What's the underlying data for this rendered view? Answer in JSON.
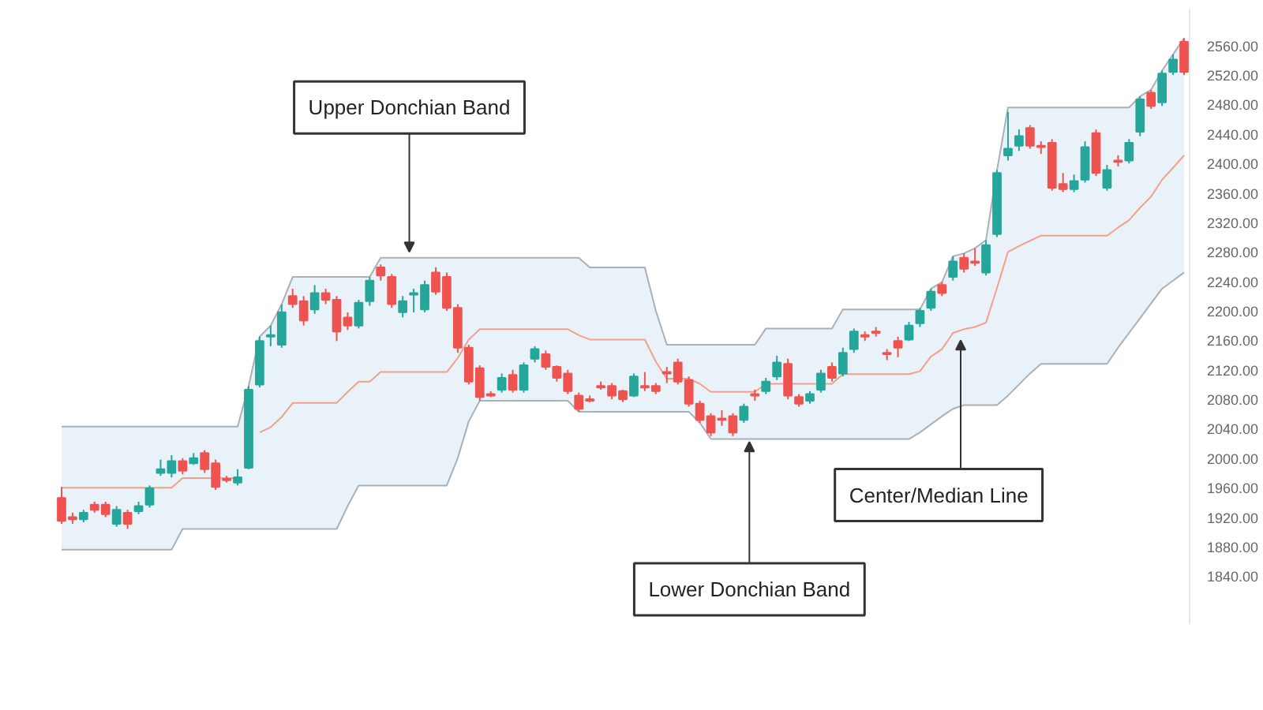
{
  "chart_data": {
    "type": "candlestick",
    "categories": [
      null,
      null,
      null,
      null,
      null,
      null,
      null,
      null,
      null,
      null,
      null,
      null,
      null,
      null,
      null,
      null,
      null,
      null,
      null,
      null,
      null,
      null,
      null,
      null,
      null,
      null,
      null,
      null,
      null,
      null,
      null,
      null,
      null,
      null,
      null,
      null,
      null,
      null,
      null,
      null,
      null,
      null,
      null,
      null,
      null,
      null,
      null,
      null,
      null,
      null,
      null,
      null,
      null,
      null,
      null,
      null,
      null,
      null,
      null,
      null,
      null,
      null,
      null,
      null,
      null,
      null,
      null,
      null,
      null,
      null,
      null,
      null,
      null,
      null,
      null,
      null,
      null,
      null,
      null,
      null,
      null,
      null,
      null,
      null,
      null,
      null,
      null,
      null,
      null,
      null,
      null,
      null,
      null,
      null,
      null,
      null,
      null,
      null,
      null,
      null,
      null,
      null,
      null
    ],
    "ohlc": [
      [
        1946,
        1961,
        1911,
        1915
      ],
      [
        1920,
        1926,
        1911,
        1917
      ],
      [
        1917,
        1930,
        1913,
        1926
      ],
      [
        1937,
        1941,
        1926,
        1930
      ],
      [
        1937,
        1941,
        1920,
        1924
      ],
      [
        1911,
        1935,
        1907,
        1930
      ],
      [
        1926,
        1930,
        1904,
        1911
      ],
      [
        1928,
        1941,
        1924,
        1935
      ],
      [
        1937,
        1963,
        1933,
        1959
      ],
      [
        1980,
        1998,
        1976,
        1985
      ],
      [
        1980,
        2004,
        1974,
        1996
      ],
      [
        1996,
        2000,
        1978,
        1983
      ],
      [
        1993,
        2007,
        1991,
        2000
      ],
      [
        2007,
        2011,
        1980,
        1985
      ],
      [
        1993,
        1998,
        1957,
        1961
      ],
      [
        1972,
        1976,
        1967,
        1970
      ],
      [
        1967,
        1985,
        1963,
        1974
      ],
      [
        1987,
        2098,
        1985,
        2093
      ],
      [
        2100,
        2165,
        2096,
        2159
      ],
      [
        2165,
        2180,
        2152,
        2167
      ],
      [
        2154,
        2209,
        2150,
        2198
      ],
      [
        2220,
        2230,
        2204,
        2209
      ],
      [
        2213,
        2220,
        2180,
        2187
      ],
      [
        2202,
        2235,
        2196,
        2224
      ],
      [
        2224,
        2230,
        2209,
        2215
      ],
      [
        2215,
        2220,
        2159,
        2172
      ],
      [
        2191,
        2198,
        2174,
        2180
      ],
      [
        2180,
        2215,
        2176,
        2211
      ],
      [
        2213,
        2246,
        2207,
        2241
      ],
      [
        2259,
        2263,
        2241,
        2248
      ],
      [
        2246,
        2250,
        2204,
        2209
      ],
      [
        2198,
        2220,
        2191,
        2213
      ],
      [
        2222,
        2230,
        2198,
        2224
      ],
      [
        2202,
        2241,
        2198,
        2235
      ],
      [
        2252,
        2259,
        2222,
        2226
      ],
      [
        2246,
        2252,
        2200,
        2204
      ],
      [
        2204,
        2209,
        2143,
        2150
      ],
      [
        2150,
        2154,
        2100,
        2104
      ],
      [
        2122,
        2126,
        2078,
        2083
      ],
      [
        2087,
        2091,
        2083,
        2085
      ],
      [
        2093,
        2115,
        2089,
        2109
      ],
      [
        2113,
        2120,
        2089,
        2093
      ],
      [
        2093,
        2130,
        2089,
        2126
      ],
      [
        2135,
        2152,
        2130,
        2148
      ],
      [
        2141,
        2146,
        2120,
        2124
      ],
      [
        2124,
        2126,
        2104,
        2109
      ],
      [
        2115,
        2120,
        2087,
        2091
      ],
      [
        2085,
        2089,
        2063,
        2067
      ],
      [
        2080,
        2085,
        2076,
        2078
      ],
      [
        2098,
        2104,
        2093,
        2096
      ],
      [
        2098,
        2102,
        2080,
        2085
      ],
      [
        2091,
        2093,
        2076,
        2080
      ],
      [
        2085,
        2115,
        2083,
        2111
      ],
      [
        2098,
        2117,
        2091,
        2096
      ],
      [
        2098,
        2102,
        2087,
        2091
      ],
      [
        2117,
        2124,
        2102,
        2115
      ],
      [
        2130,
        2135,
        2100,
        2104
      ],
      [
        2106,
        2111,
        2070,
        2074
      ],
      [
        2074,
        2078,
        2048,
        2052
      ],
      [
        2057,
        2061,
        2030,
        2035
      ],
      [
        2054,
        2065,
        2044,
        2052
      ],
      [
        2057,
        2061,
        2030,
        2035
      ],
      [
        2052,
        2074,
        2048,
        2070
      ],
      [
        2087,
        2093,
        2078,
        2085
      ],
      [
        2091,
        2109,
        2087,
        2104
      ],
      [
        2111,
        2139,
        2106,
        2130
      ],
      [
        2128,
        2135,
        2080,
        2085
      ],
      [
        2083,
        2087,
        2070,
        2074
      ],
      [
        2078,
        2091,
        2074,
        2087
      ],
      [
        2093,
        2120,
        2089,
        2115
      ],
      [
        2124,
        2130,
        2104,
        2109
      ],
      [
        2115,
        2150,
        2111,
        2143
      ],
      [
        2148,
        2176,
        2143,
        2172
      ],
      [
        2167,
        2172,
        2159,
        2165
      ],
      [
        2172,
        2178,
        2165,
        2170
      ],
      [
        2143,
        2148,
        2133,
        2141
      ],
      [
        2159,
        2165,
        2137,
        2150
      ],
      [
        2161,
        2185,
        2159,
        2180
      ],
      [
        2183,
        2204,
        2178,
        2200
      ],
      [
        2204,
        2230,
        2200,
        2226
      ],
      [
        2235,
        2239,
        2220,
        2224
      ],
      [
        2246,
        2274,
        2241,
        2267
      ],
      [
        2272,
        2278,
        2252,
        2257
      ],
      [
        2267,
        2285,
        2261,
        2265
      ],
      [
        2252,
        2296,
        2248,
        2289
      ],
      [
        2304,
        2391,
        2300,
        2387
      ],
      [
        2411,
        2470,
        2404,
        2420
      ],
      [
        2424,
        2446,
        2417,
        2437
      ],
      [
        2448,
        2452,
        2420,
        2424
      ],
      [
        2424,
        2430,
        2413,
        2422
      ],
      [
        2428,
        2433,
        2363,
        2367
      ],
      [
        2372,
        2387,
        2361,
        2365
      ],
      [
        2365,
        2385,
        2361,
        2376
      ],
      [
        2378,
        2430,
        2374,
        2422
      ],
      [
        2441,
        2446,
        2383,
        2387
      ],
      [
        2367,
        2398,
        2363,
        2391
      ],
      [
        2404,
        2411,
        2396,
        2402
      ],
      [
        2404,
        2433,
        2400,
        2428
      ],
      [
        2443,
        2491,
        2437,
        2487
      ],
      [
        2496,
        2500,
        2474,
        2478
      ],
      [
        2483,
        2526,
        2478,
        2522
      ],
      [
        2524,
        2548,
        2520,
        2541
      ],
      [
        2565,
        2570,
        2520,
        2524
      ]
    ],
    "colors": [
      "#ef5350",
      "#ef5350",
      "#26a69a",
      "#ef5350",
      "#ef5350",
      "#26a69a",
      "#ef5350",
      "#26a69a",
      "#26a69a",
      "#26a69a",
      "#26a69a",
      "#ef5350",
      "#26a69a",
      "#ef5350",
      "#ef5350",
      "#ef5350",
      "#26a69a",
      "#26a69a",
      "#26a69a",
      "#26a69a",
      "#26a69a",
      "#ef5350",
      "#ef5350",
      "#26a69a",
      "#ef5350",
      "#ef5350",
      "#ef5350",
      "#26a69a",
      "#26a69a",
      "#ef5350",
      "#ef5350",
      "#26a69a",
      "#26a69a",
      "#26a69a",
      "#ef5350",
      "#ef5350",
      "#ef5350",
      "#ef5350",
      "#ef5350",
      "#ef5350",
      "#26a69a",
      "#ef5350",
      "#26a69a",
      "#26a69a",
      "#ef5350",
      "#ef5350",
      "#ef5350",
      "#ef5350",
      "#ef5350",
      "#ef5350",
      "#ef5350",
      "#ef5350",
      "#26a69a",
      "#ef5350",
      "#ef5350",
      "#ef5350",
      "#ef5350",
      "#ef5350",
      "#ef5350",
      "#ef5350",
      "#ef5350",
      "#ef5350",
      "#26a69a",
      "#ef5350",
      "#26a69a",
      "#26a69a",
      "#ef5350",
      "#ef5350",
      "#26a69a",
      "#26a69a",
      "#ef5350",
      "#26a69a",
      "#26a69a",
      "#ef5350",
      "#ef5350",
      "#ef5350",
      "#ef5350",
      "#26a69a",
      "#26a69a",
      "#26a69a",
      "#ef5350",
      "#26a69a",
      "#ef5350",
      "#ef5350",
      "#26a69a",
      "#26a69a",
      "#26a69a",
      "#26a69a",
      "#ef5350",
      "#ef5350",
      "#ef5350",
      "#ef5350",
      "#26a69a",
      "#26a69a",
      "#ef5350",
      "#26a69a",
      "#ef5350",
      "#26a69a",
      "#26a69a",
      "#ef5350",
      "#26a69a",
      "#26a69a",
      "#ef5350"
    ],
    "series": [
      {
        "type": "line",
        "color": "#a9b0b6",
        "values": [
          2043,
          2043,
          2043,
          2043,
          2043,
          2043,
          2043,
          2043,
          2043,
          2043,
          2043,
          2043,
          2043,
          2043,
          2043,
          2043,
          2043,
          2098,
          2165,
          2180,
          2209,
          2246,
          2246,
          2246,
          2246,
          2246,
          2246,
          2246,
          2246,
          2272,
          2272,
          2272,
          2272,
          2272,
          2272,
          2272,
          2272,
          2272,
          2272,
          2272,
          2272,
          2272,
          2272,
          2272,
          2272,
          2272,
          2272,
          2272,
          2259,
          2259,
          2259,
          2259,
          2259,
          2259,
          2200,
          2154,
          2154,
          2154,
          2154,
          2154,
          2154,
          2154,
          2154,
          2154,
          2176,
          2176,
          2176,
          2176,
          2176,
          2176,
          2176,
          2202,
          2202,
          2202,
          2202,
          2202,
          2202,
          2202,
          2202,
          2230,
          2239,
          2274,
          2278,
          2285,
          2296,
          2391,
          2476,
          2476,
          2476,
          2476,
          2476,
          2476,
          2476,
          2476,
          2476,
          2476,
          2476,
          2476,
          2491,
          2500,
          2526,
          2548,
          2570
        ]
      },
      {
        "type": "line",
        "color": "#a9b0b6",
        "values": [
          1876,
          1876,
          1876,
          1876,
          1876,
          1876,
          1876,
          1876,
          1876,
          1876,
          1876,
          1904,
          1904,
          1904,
          1904,
          1904,
          1904,
          1904,
          1904,
          1904,
          1904,
          1904,
          1904,
          1904,
          1904,
          1904,
          1935,
          1963,
          1963,
          1963,
          1963,
          1963,
          1963,
          1963,
          1963,
          1963,
          2000,
          2050,
          2078,
          2078,
          2078,
          2078,
          2078,
          2078,
          2078,
          2078,
          2078,
          2063,
          2063,
          2063,
          2063,
          2063,
          2063,
          2063,
          2063,
          2063,
          2063,
          2063,
          2048,
          2026,
          2026,
          2026,
          2026,
          2026,
          2026,
          2026,
          2026,
          2026,
          2026,
          2026,
          2026,
          2026,
          2026,
          2026,
          2026,
          2026,
          2026,
          2026,
          2035,
          2046,
          2057,
          2067,
          2072,
          2072,
          2072,
          2072,
          2085,
          2100,
          2115,
          2128,
          2128,
          2128,
          2128,
          2128,
          2128,
          2128,
          2150,
          2170,
          2190,
          2210,
          2230,
          2241,
          2252
        ]
      },
      {
        "type": "line",
        "color": "#f2a08c",
        "values": [
          1960,
          1960,
          1960,
          1960,
          1960,
          1960,
          1960,
          1960,
          1960,
          1960,
          1960,
          1973,
          1973,
          1973,
          1973,
          1973,
          1973,
          null,
          2035,
          2042,
          2056,
          2075,
          2075,
          2075,
          2075,
          2075,
          2090,
          2104,
          2104,
          2117,
          2117,
          2117,
          2117,
          2117,
          2117,
          2117,
          2136,
          2161,
          2175,
          2175,
          2175,
          2175,
          2175,
          2175,
          2175,
          2175,
          2175,
          2167,
          2161,
          2161,
          2161,
          2161,
          2161,
          2161,
          2131,
          2108,
          2108,
          2108,
          2101,
          2090,
          2090,
          2090,
          2090,
          2090,
          2101,
          2101,
          2101,
          2101,
          2101,
          2101,
          2101,
          2114,
          2114,
          2114,
          2114,
          2114,
          2114,
          2114,
          2118,
          2138,
          2148,
          2170,
          2175,
          2178,
          2184,
          2231,
          2280,
          2288,
          2295,
          2302,
          2302,
          2302,
          2302,
          2302,
          2302,
          2302,
          2313,
          2323,
          2340,
          2355,
          2378,
          2394,
          2411
        ],
        "lower": [
          1876,
          1876,
          1876,
          1876,
          1876,
          1876,
          1876,
          1876,
          1876,
          1876,
          1876,
          1904,
          1904,
          1904,
          1904,
          1904,
          1904,
          1904,
          1904,
          1904,
          1904,
          1904,
          1904,
          1904,
          1904,
          1904,
          1935,
          1963,
          1963,
          1963,
          1963,
          1963,
          1963,
          1963,
          1963,
          1963,
          2000,
          2050,
          2078,
          2078,
          2078,
          2078,
          2078,
          2078,
          2078,
          2078,
          2078,
          2063,
          2063,
          2063,
          2063,
          2063,
          2063,
          2063,
          2063,
          2063,
          2063,
          2063,
          2048,
          2026,
          2026,
          2026,
          2026,
          2026,
          2026,
          2026,
          2026,
          2026,
          2026,
          2026,
          2026,
          2026,
          2026,
          2026,
          2026,
          2026,
          2026,
          2026,
          2035,
          2046,
          2057,
          2067,
          2072,
          2072,
          2072,
          2072,
          2085,
          2100,
          2115,
          2128,
          2128,
          2128,
          2128,
          2128,
          2128,
          2128,
          2150,
          2170,
          2190,
          2210,
          2230,
          2241,
          2252
        ],
        "upper": [
          2043,
          2043,
          2043,
          2043,
          2043,
          2043,
          2043,
          2043,
          2043,
          2043,
          2043,
          2043,
          2043,
          2043,
          2043,
          2043,
          2043,
          2098,
          2165,
          2180,
          2209,
          2246,
          2246,
          2246,
          2246,
          2246,
          2246,
          2246,
          2246,
          2272,
          2272,
          2272,
          2272,
          2272,
          2272,
          2272,
          2272,
          2272,
          2272,
          2272,
          2272,
          2272,
          2272,
          2272,
          2272,
          2272,
          2272,
          2272,
          2259,
          2259,
          2259,
          2259,
          2259,
          2259,
          2200,
          2154,
          2154,
          2154,
          2154,
          2154,
          2154,
          2154,
          2154,
          2154,
          2176,
          2176,
          2176,
          2176,
          2176,
          2176,
          2176,
          2202,
          2202,
          2202,
          2202,
          2202,
          2202,
          2202,
          2202,
          2230,
          2239,
          2274,
          2278,
          2285,
          2296,
          2391,
          2476,
          2476,
          2476,
          2476,
          2476,
          2476,
          2476,
          2476,
          2476,
          2476,
          2476,
          2476,
          2491,
          2500,
          2526,
          2548,
          2570
        ]
      }
    ],
    "ylim": [
      1775,
      2610
    ],
    "yticks": [
      {
        "value": 1840,
        "label": "1840.00"
      },
      {
        "value": 1880,
        "label": "1880.00"
      },
      {
        "value": 1920,
        "label": "1920.00"
      },
      {
        "value": 1960,
        "label": "1960.00"
      },
      {
        "value": 2000,
        "label": "2000.00"
      },
      {
        "value": 2040,
        "label": "2040.00"
      },
      {
        "value": 2080,
        "label": "2080.00"
      },
      {
        "value": 2120,
        "label": "2120.00"
      },
      {
        "value": 2160,
        "label": "2160.00"
      },
      {
        "value": 2200,
        "label": "2200.00"
      },
      {
        "value": 2240,
        "label": "2240.00"
      },
      {
        "value": 2280,
        "label": "2280.00"
      },
      {
        "value": 2320,
        "label": "2320.00"
      },
      {
        "value": 2360,
        "label": "2360.00"
      },
      {
        "value": 2400,
        "label": "2400.00"
      },
      {
        "value": 2440,
        "label": "2440.00"
      },
      {
        "value": 2480,
        "label": "2480.00"
      },
      {
        "value": 2520,
        "label": "2520.00"
      },
      {
        "value": 2560,
        "label": "2560.00"
      }
    ],
    "annotations": [
      "Upper Donchian Band",
      "Lower Donchian Band",
      "Center/Median Line"
    ]
  }
}
